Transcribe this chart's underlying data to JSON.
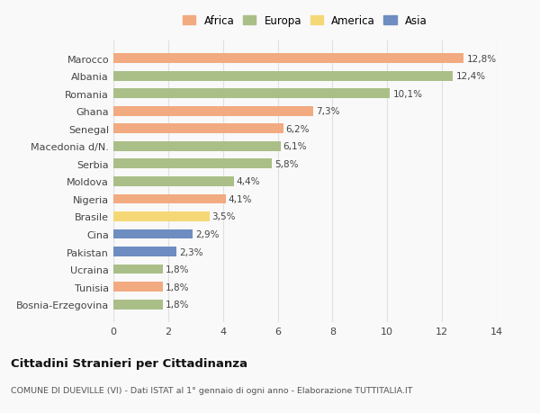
{
  "countries": [
    "Marocco",
    "Albania",
    "Romania",
    "Ghana",
    "Senegal",
    "Macedonia d/N.",
    "Serbia",
    "Moldova",
    "Nigeria",
    "Brasile",
    "Cina",
    "Pakistan",
    "Ucraina",
    "Tunisia",
    "Bosnia-Erzegovina"
  ],
  "values": [
    12.8,
    12.4,
    10.1,
    7.3,
    6.2,
    6.1,
    5.8,
    4.4,
    4.1,
    3.5,
    2.9,
    2.3,
    1.8,
    1.8,
    1.8
  ],
  "labels": [
    "12,8%",
    "12,4%",
    "10,1%",
    "7,3%",
    "6,2%",
    "6,1%",
    "5,8%",
    "4,4%",
    "4,1%",
    "3,5%",
    "2,9%",
    "2,3%",
    "1,8%",
    "1,8%",
    "1,8%"
  ],
  "colors": [
    "#F2AA80",
    "#AABF88",
    "#AABF88",
    "#F2AA80",
    "#F2AA80",
    "#AABF88",
    "#AABF88",
    "#AABF88",
    "#F2AA80",
    "#F5D876",
    "#6E8DC0",
    "#6E8DC0",
    "#AABF88",
    "#F2AA80",
    "#AABF88"
  ],
  "legend": [
    {
      "label": "Africa",
      "color": "#F2AA80"
    },
    {
      "label": "Europa",
      "color": "#AABF88"
    },
    {
      "label": "America",
      "color": "#F5D876"
    },
    {
      "label": "Asia",
      "color": "#6E8DC0"
    }
  ],
  "xlim": [
    0,
    14
  ],
  "xticks": [
    0,
    2,
    4,
    6,
    8,
    10,
    12,
    14
  ],
  "title": "Cittadini Stranieri per Cittadinanza",
  "subtitle": "COMUNE DI DUEVILLE (VI) - Dati ISTAT al 1° gennaio di ogni anno - Elaborazione TUTTITALIA.IT",
  "background_color": "#f9f9f9",
  "grid_color": "#e0e0e0"
}
